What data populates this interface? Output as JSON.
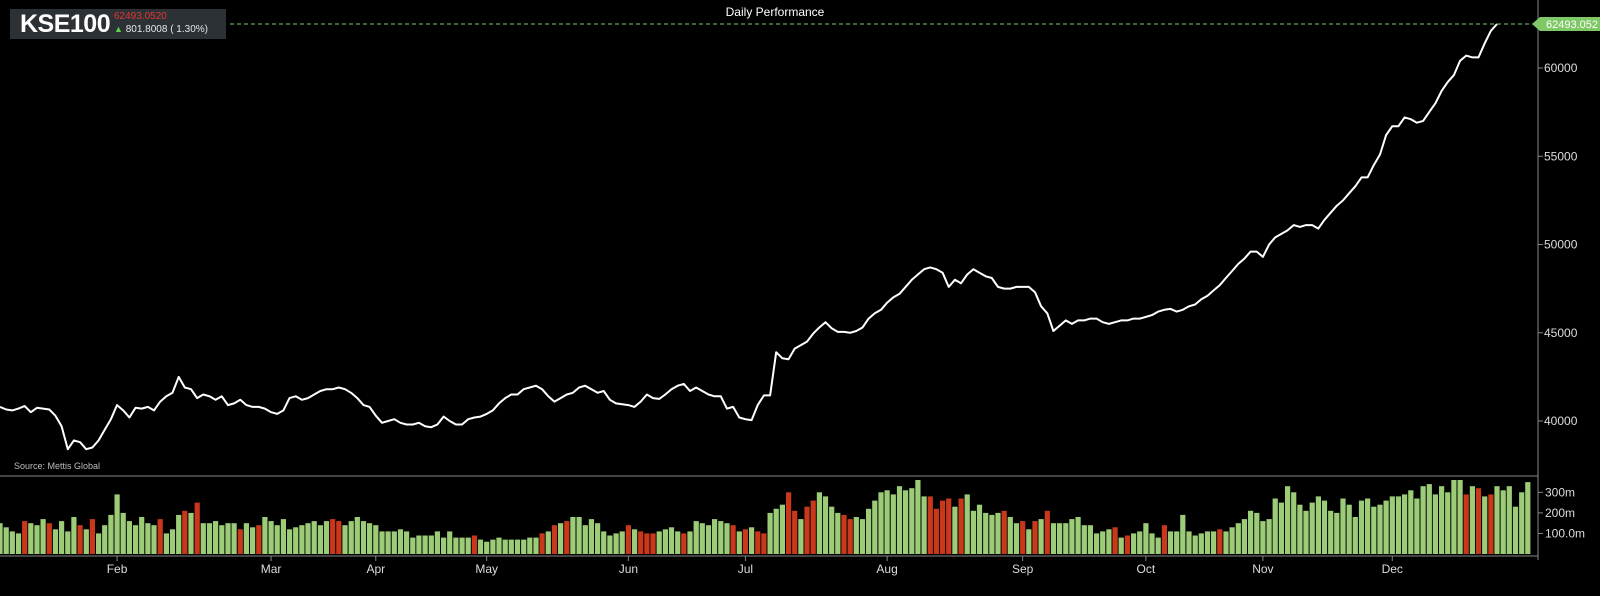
{
  "ticker": {
    "symbol": "KSE100",
    "price": "62493.0520",
    "change": "801.8008 ( 1.30%)",
    "direction_icon": "up-arrow-icon"
  },
  "title": "Daily Performance",
  "source": "Source: Mettis Global",
  "last_price_label": "62493.052",
  "colors": {
    "background": "#000000",
    "line": "#ffffff",
    "volume_up": "#9ccc78",
    "volume_down": "#c9381a",
    "last_price_tag": "#7fc866",
    "ticker_price": "#e53535",
    "up_arrow": "#5bd14a"
  },
  "chart_data": [
    {
      "type": "line",
      "title": "Daily Performance",
      "series": [
        {
          "name": "KSE100",
          "values": [
            40800,
            40650,
            40600,
            40700,
            40850,
            40500,
            40750,
            40700,
            40650,
            40300,
            39700,
            38400,
            38900,
            38800,
            38400,
            38500,
            38900,
            39500,
            40100,
            40900,
            40600,
            40200,
            40750,
            40700,
            40800,
            40600,
            41100,
            41400,
            41600,
            42500,
            41900,
            41800,
            41300,
            41500,
            41400,
            41200,
            41400,
            40900,
            41000,
            41200,
            40900,
            40800,
            40800,
            40700,
            40500,
            40400,
            40600,
            41300,
            41400,
            41200,
            41300,
            41500,
            41700,
            41800,
            41800,
            41900,
            41800,
            41600,
            41300,
            40900,
            40800,
            40300,
            39900,
            40000,
            40100,
            39900,
            39800,
            39800,
            39900,
            39700,
            39650,
            39800,
            40250,
            40000,
            39800,
            39800,
            40100,
            40200,
            40250,
            40400,
            40600,
            41000,
            41300,
            41500,
            41500,
            41800,
            41900,
            42000,
            41800,
            41400,
            41100,
            41300,
            41500,
            41600,
            41900,
            42000,
            41800,
            41600,
            41700,
            41200,
            41000,
            40950,
            40900,
            40800,
            41100,
            41500,
            41300,
            41250,
            41500,
            41800,
            42000,
            42100,
            41700,
            41900,
            41700,
            41500,
            41400,
            41400,
            40700,
            40800,
            40200,
            40100,
            40050,
            40900,
            41450,
            41450,
            43900,
            43550,
            43500,
            44100,
            44300,
            44500,
            44950,
            45300,
            45600,
            45250,
            45050,
            45050,
            45000,
            45100,
            45300,
            45800,
            46100,
            46300,
            46700,
            47000,
            47200,
            47600,
            48000,
            48300,
            48600,
            48700,
            48600,
            48400,
            47600,
            48000,
            47800,
            48300,
            48600,
            48400,
            48200,
            48100,
            47600,
            47500,
            47500,
            47600,
            47600,
            47600,
            47300,
            46500,
            46100,
            45100,
            45400,
            45700,
            45500,
            45700,
            45700,
            45800,
            45800,
            45600,
            45500,
            45600,
            45700,
            45700,
            45800,
            45800,
            45900,
            46000,
            46200,
            46300,
            46350,
            46200,
            46300,
            46500,
            46600,
            46900,
            47100,
            47400,
            47700,
            48100,
            48500,
            48900,
            49200,
            49600,
            49600,
            49300,
            50000,
            50400,
            50600,
            50800,
            51100,
            51000,
            51100,
            51100,
            50900,
            51400,
            51800,
            52200,
            52500,
            52900,
            53300,
            53800,
            53800,
            54500,
            55100,
            56200,
            56700,
            56700,
            57200,
            57100,
            56900,
            57000,
            57500,
            58000,
            58700,
            59200,
            59600,
            60400,
            60700,
            60600,
            60600,
            61400,
            62100,
            62493
          ]
        }
      ],
      "y_ticks": [
        "40000",
        "45000",
        "50000",
        "55000",
        "60000"
      ],
      "ylim": [
        37500,
        63000
      ],
      "last_value": 62493.052,
      "x_month_labels": [
        "Feb",
        "Mar",
        "Apr",
        "May",
        "Jun",
        "Jul",
        "Aug",
        "Sep",
        "Oct",
        "Nov",
        "Dec"
      ],
      "grid": false
    },
    {
      "type": "bar",
      "series": [
        {
          "name": "Volume",
          "values": [
            150,
            130,
            110,
            100,
            160,
            150,
            140,
            170,
            150,
            120,
            160,
            110,
            180,
            140,
            120,
            170,
            100,
            140,
            190,
            290,
            200,
            160,
            140,
            180,
            150,
            140,
            170,
            100,
            120,
            190,
            210,
            200,
            250,
            150,
            150,
            160,
            140,
            150,
            150,
            120,
            150,
            130,
            140,
            180,
            160,
            140,
            170,
            120,
            130,
            140,
            150,
            160,
            140,
            160,
            170,
            160,
            140,
            160,
            180,
            160,
            150,
            140,
            110,
            110,
            110,
            120,
            110,
            80,
            90,
            90,
            90,
            110,
            80,
            110,
            80,
            80,
            80,
            90,
            70,
            60,
            70,
            80,
            70,
            70,
            70,
            70,
            80,
            80,
            100,
            110,
            140,
            150,
            160,
            180,
            180,
            140,
            170,
            150,
            110,
            90,
            100,
            110,
            140,
            120,
            110,
            100,
            100,
            110,
            120,
            130,
            110,
            100,
            110,
            160,
            150,
            140,
            170,
            160,
            150,
            140,
            110,
            120,
            130,
            110,
            100,
            200,
            220,
            240,
            300,
            210,
            170,
            230,
            260,
            300,
            280,
            230,
            200,
            190,
            170,
            180,
            170,
            220,
            260,
            300,
            310,
            290,
            330,
            310,
            320,
            360,
            280,
            280,
            220,
            260,
            270,
            230,
            270,
            290,
            210,
            240,
            200,
            190,
            200,
            210,
            180,
            150,
            160,
            120,
            160,
            170,
            210,
            150,
            150,
            150,
            170,
            180,
            140,
            140,
            100,
            110,
            120,
            130,
            80,
            90,
            100,
            110,
            150,
            100,
            80,
            140,
            110,
            110,
            190,
            110,
            90,
            100,
            110,
            110,
            120,
            110,
            130,
            150,
            170,
            210,
            200,
            160,
            170,
            270,
            250,
            330,
            300,
            240,
            210,
            250,
            280,
            260,
            210,
            200,
            270,
            240,
            180,
            260,
            270,
            230,
            240,
            260,
            280,
            280,
            290,
            310,
            270,
            330,
            340,
            290,
            330,
            300,
            360,
            360,
            290,
            330,
            320,
            280,
            290,
            330,
            310,
            330,
            230,
            300,
            350
          ]
        }
      ],
      "down_days": [
        4,
        8,
        13,
        15,
        26,
        30,
        32,
        39,
        42,
        54,
        55,
        77,
        88,
        90,
        92,
        102,
        104,
        105,
        106,
        111,
        119,
        121,
        123,
        124,
        128,
        129,
        131,
        132,
        137,
        138,
        151,
        152,
        153,
        154,
        156,
        163,
        166,
        168,
        170,
        181,
        183,
        189,
        198,
        238,
        240,
        242
      ],
      "y_ticks": [
        "100.0m",
        "200m",
        "300m"
      ],
      "ylim": [
        0,
        360
      ]
    }
  ]
}
